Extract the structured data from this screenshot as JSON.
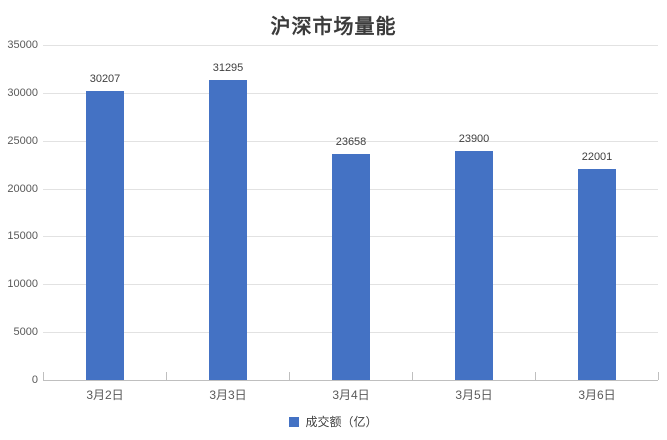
{
  "title": "沪深市场量能",
  "legend": {
    "label": "成交额（亿）",
    "marker_color": "#4472c4"
  },
  "colors": {
    "bar": "#4472c4",
    "gridline": "#e2e2e2",
    "axis_line": "#bfbfbf",
    "axis_text": "#595959",
    "data_label_text": "#404040",
    "title_text": "#3b3b3b"
  },
  "chart_data": {
    "type": "bar",
    "title": "沪深市场量能",
    "categories": [
      "3月2日",
      "3月3日",
      "3月4日",
      "3月5日",
      "3月6日"
    ],
    "series": [
      {
        "name": "成交额（亿）",
        "values": [
          30207,
          31295,
          23658,
          23900,
          22001
        ]
      }
    ],
    "xlabel": "",
    "ylabel": "",
    "ylim": [
      0,
      35000
    ],
    "ytick_interval": 5000,
    "yticks": [
      0,
      5000,
      10000,
      15000,
      20000,
      25000,
      30000,
      35000
    ],
    "grid": true,
    "data_labels": true,
    "legend_position": "bottom"
  }
}
